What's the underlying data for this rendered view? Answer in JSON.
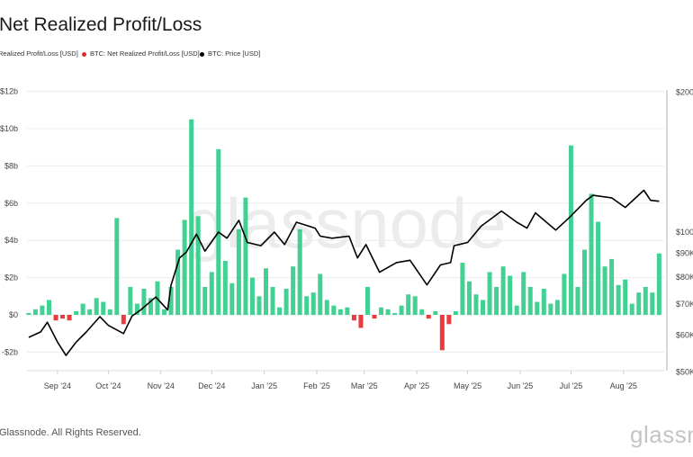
{
  "title": "Net Realized Profit/Loss",
  "legend": [
    {
      "label": "Realized Profit/Loss [USD]",
      "color": ""
    },
    {
      "label": "BTC: Net Realized Profit/Loss [USD]",
      "color": "#e8262a"
    },
    {
      "label": "BTC: Price [USD]",
      "color": "#000000"
    }
  ],
  "footer": "Glassnode. All Rights Reserved.",
  "logo_text": "glassn",
  "watermark_text": "glassnode",
  "chart_data": {
    "type": "bar+line",
    "title": "Net Realized Profit/Loss",
    "x_range": [
      "2024-08-14",
      "2025-08-25"
    ],
    "x_ticks": [
      {
        "date": "2024-09-01",
        "label": "Sep '24"
      },
      {
        "date": "2024-10-01",
        "label": "Oct '24"
      },
      {
        "date": "2024-11-01",
        "label": "Nov '24"
      },
      {
        "date": "2024-12-01",
        "label": "Dec '24"
      },
      {
        "date": "2025-01-01",
        "label": "Jan '25"
      },
      {
        "date": "2025-02-01",
        "label": "Feb '25"
      },
      {
        "date": "2025-03-01",
        "label": "Mar '25"
      },
      {
        "date": "2025-04-01",
        "label": "Apr '25"
      },
      {
        "date": "2025-05-01",
        "label": "May '25"
      },
      {
        "date": "2025-06-01",
        "label": "Jun '25"
      },
      {
        "date": "2025-07-01",
        "label": "Jul '25"
      },
      {
        "date": "2025-08-01",
        "label": "Aug '25"
      }
    ],
    "y_left": {
      "unit": "USD billions",
      "range": [
        -3,
        12
      ],
      "ticks": [
        {
          "v": 12,
          "label": "$12b"
        },
        {
          "v": 10,
          "label": "$10b"
        },
        {
          "v": 8,
          "label": "$8b"
        },
        {
          "v": 6,
          "label": "$6b"
        },
        {
          "v": 4,
          "label": "$4b"
        },
        {
          "v": 2,
          "label": "$2b"
        },
        {
          "v": 0,
          "label": "$0"
        },
        {
          "v": -2,
          "label": "-$2b"
        }
      ]
    },
    "y_right": {
      "scale": "log",
      "unit": "USD",
      "range": [
        50000,
        200000
      ],
      "ticks": [
        {
          "v": 200000,
          "label": "$200K"
        },
        {
          "v": 100000,
          "label": "$100K"
        },
        {
          "v": 90000,
          "label": "$90K"
        },
        {
          "v": 80000,
          "label": "$80K"
        },
        {
          "v": 70000,
          "label": "$70K"
        },
        {
          "v": 60000,
          "label": "$60K"
        },
        {
          "v": 50000,
          "label": "$50K"
        }
      ]
    },
    "grid": true,
    "colors": {
      "profit": "#2ecc87",
      "loss": "#e8262a",
      "price": "#000000"
    },
    "nrpl": [
      [
        "2024-08-15",
        0.1
      ],
      [
        "2024-08-19",
        0.3
      ],
      [
        "2024-08-23",
        0.5
      ],
      [
        "2024-08-27",
        0.8
      ],
      [
        "2024-08-31",
        -0.3
      ],
      [
        "2024-09-04",
        -0.2
      ],
      [
        "2024-09-08",
        -0.3
      ],
      [
        "2024-09-12",
        0.2
      ],
      [
        "2024-09-16",
        0.6
      ],
      [
        "2024-09-20",
        0.3
      ],
      [
        "2024-09-24",
        0.9
      ],
      [
        "2024-09-28",
        0.7
      ],
      [
        "2024-10-02",
        0.3
      ],
      [
        "2024-10-06",
        5.2
      ],
      [
        "2024-10-10",
        -0.5
      ],
      [
        "2024-10-14",
        1.5
      ],
      [
        "2024-10-18",
        0.6
      ],
      [
        "2024-10-22",
        1.4
      ],
      [
        "2024-10-26",
        0.9
      ],
      [
        "2024-10-30",
        1.8
      ],
      [
        "2024-11-03",
        0.3
      ],
      [
        "2024-11-07",
        1.5
      ],
      [
        "2024-11-11",
        3.5
      ],
      [
        "2024-11-15",
        5.1
      ],
      [
        "2024-11-19",
        10.5
      ],
      [
        "2024-11-23",
        5.3
      ],
      [
        "2024-11-27",
        1.5
      ],
      [
        "2024-12-01",
        2.3
      ],
      [
        "2024-12-05",
        8.9
      ],
      [
        "2024-12-09",
        2.9
      ],
      [
        "2024-12-13",
        1.7
      ],
      [
        "2024-12-17",
        4.6
      ],
      [
        "2024-12-21",
        6.3
      ],
      [
        "2024-12-25",
        2.0
      ],
      [
        "2024-12-29",
        1.0
      ],
      [
        "2025-01-02",
        2.5
      ],
      [
        "2025-01-06",
        1.5
      ],
      [
        "2025-01-10",
        0.4
      ],
      [
        "2025-01-14",
        1.4
      ],
      [
        "2025-01-18",
        2.6
      ],
      [
        "2025-01-22",
        4.6
      ],
      [
        "2025-01-26",
        1.0
      ],
      [
        "2025-01-30",
        1.2
      ],
      [
        "2025-02-03",
        2.2
      ],
      [
        "2025-02-07",
        0.8
      ],
      [
        "2025-02-11",
        0.5
      ],
      [
        "2025-02-15",
        0.3
      ],
      [
        "2025-02-19",
        0.4
      ],
      [
        "2025-02-23",
        -0.3
      ],
      [
        "2025-02-27",
        -0.7
      ],
      [
        "2025-03-03",
        1.5
      ],
      [
        "2025-03-07",
        -0.2
      ],
      [
        "2025-03-11",
        0.4
      ],
      [
        "2025-03-15",
        0.3
      ],
      [
        "2025-03-19",
        0.1
      ],
      [
        "2025-03-23",
        0.5
      ],
      [
        "2025-03-27",
        1.1
      ],
      [
        "2025-03-31",
        1.0
      ],
      [
        "2025-04-04",
        0.3
      ],
      [
        "2025-04-08",
        -0.2
      ],
      [
        "2025-04-12",
        0.2
      ],
      [
        "2025-04-16",
        -1.9
      ],
      [
        "2025-04-20",
        -0.5
      ],
      [
        "2025-04-24",
        0.2
      ],
      [
        "2025-04-28",
        2.8
      ],
      [
        "2025-05-02",
        1.8
      ],
      [
        "2025-05-06",
        1.1
      ],
      [
        "2025-05-10",
        0.8
      ],
      [
        "2025-05-14",
        2.3
      ],
      [
        "2025-05-18",
        1.5
      ],
      [
        "2025-05-22",
        2.6
      ],
      [
        "2025-05-26",
        2.1
      ],
      [
        "2025-05-30",
        0.5
      ],
      [
        "2025-06-03",
        2.3
      ],
      [
        "2025-06-07",
        1.5
      ],
      [
        "2025-06-11",
        0.7
      ],
      [
        "2025-06-15",
        1.4
      ],
      [
        "2025-06-19",
        0.6
      ],
      [
        "2025-06-23",
        0.8
      ],
      [
        "2025-06-27",
        2.2
      ],
      [
        "2025-07-01",
        9.1
      ],
      [
        "2025-07-05",
        1.5
      ],
      [
        "2025-07-09",
        3.5
      ],
      [
        "2025-07-13",
        6.5
      ],
      [
        "2025-07-17",
        5.0
      ],
      [
        "2025-07-21",
        2.6
      ],
      [
        "2025-07-25",
        3.0
      ],
      [
        "2025-07-29",
        1.6
      ],
      [
        "2025-08-02",
        1.9
      ],
      [
        "2025-08-06",
        0.6
      ],
      [
        "2025-08-10",
        1.2
      ],
      [
        "2025-08-14",
        1.5
      ],
      [
        "2025-08-18",
        1.2
      ],
      [
        "2025-08-22",
        3.3
      ]
    ],
    "price": [
      [
        "2024-08-15",
        59400
      ],
      [
        "2024-08-22",
        61000
      ],
      [
        "2024-08-26",
        64000
      ],
      [
        "2024-09-01",
        58000
      ],
      [
        "2024-09-06",
        54300
      ],
      [
        "2024-09-12",
        58000
      ],
      [
        "2024-09-18",
        61000
      ],
      [
        "2024-09-26",
        65800
      ],
      [
        "2024-10-01",
        63000
      ],
      [
        "2024-10-10",
        60500
      ],
      [
        "2024-10-15",
        66000
      ],
      [
        "2024-10-20",
        68000
      ],
      [
        "2024-10-29",
        72500
      ],
      [
        "2024-11-05",
        68000
      ],
      [
        "2024-11-07",
        77000
      ],
      [
        "2024-11-12",
        88000
      ],
      [
        "2024-11-16",
        90500
      ],
      [
        "2024-11-22",
        99000
      ],
      [
        "2024-11-27",
        91000
      ],
      [
        "2024-12-05",
        100000
      ],
      [
        "2024-12-10",
        97000
      ],
      [
        "2024-12-17",
        106000
      ],
      [
        "2024-12-22",
        95000
      ],
      [
        "2024-12-30",
        93500
      ],
      [
        "2025-01-07",
        100000
      ],
      [
        "2025-01-13",
        94000
      ],
      [
        "2025-01-20",
        105000
      ],
      [
        "2025-01-31",
        102000
      ],
      [
        "2025-02-03",
        98000
      ],
      [
        "2025-02-10",
        97000
      ],
      [
        "2025-02-20",
        98000
      ],
      [
        "2025-02-25",
        88000
      ],
      [
        "2025-03-02",
        94000
      ],
      [
        "2025-03-10",
        82000
      ],
      [
        "2025-03-20",
        86000
      ],
      [
        "2025-03-28",
        87000
      ],
      [
        "2025-04-07",
        77000
      ],
      [
        "2025-04-15",
        85000
      ],
      [
        "2025-04-21",
        86000
      ],
      [
        "2025-04-23",
        93500
      ],
      [
        "2025-05-01",
        95000
      ],
      [
        "2025-05-09",
        103000
      ],
      [
        "2025-05-21",
        111000
      ],
      [
        "2025-05-30",
        105000
      ],
      [
        "2025-06-05",
        102000
      ],
      [
        "2025-06-10",
        110000
      ],
      [
        "2025-06-22",
        101000
      ],
      [
        "2025-06-30",
        107500
      ],
      [
        "2025-07-10",
        117000
      ],
      [
        "2025-07-14",
        120000
      ],
      [
        "2025-07-25",
        118500
      ],
      [
        "2025-08-02",
        113000
      ],
      [
        "2025-08-13",
        123000
      ],
      [
        "2025-08-17",
        117000
      ],
      [
        "2025-08-22",
        116500
      ]
    ]
  }
}
